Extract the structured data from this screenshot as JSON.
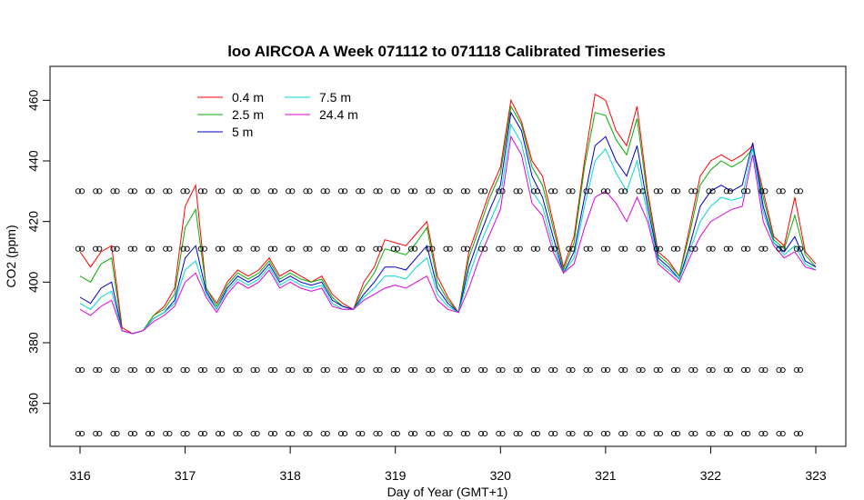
{
  "chart_data": {
    "type": "line",
    "title": "loo AIRCOA A  Week 071112 to 071118  Calibrated Timeseries",
    "xlabel": "Day of Year (GMT+1)",
    "ylabel": "CO2 (ppm)",
    "xlim": [
      316,
      323
    ],
    "ylim": [
      350,
      470
    ],
    "x_ticks": [
      316,
      317,
      318,
      319,
      320,
      321,
      322,
      323
    ],
    "y_ticks": [
      360,
      380,
      400,
      420,
      440,
      460
    ],
    "grid": false,
    "legend_position": "top-left",
    "series": [
      {
        "name": "0.4 m",
        "color": "#ff0000",
        "x": [
          316.0,
          316.1,
          316.2,
          316.3,
          316.4,
          316.5,
          316.6,
          316.7,
          316.8,
          316.9,
          317.0,
          317.1,
          317.2,
          317.3,
          317.4,
          317.5,
          317.6,
          317.7,
          317.8,
          317.9,
          318.0,
          318.1,
          318.2,
          318.3,
          318.4,
          318.5,
          318.6,
          318.7,
          318.8,
          318.9,
          319.0,
          319.1,
          319.2,
          319.3,
          319.4,
          319.5,
          319.6,
          319.7,
          319.8,
          319.9,
          320.0,
          320.1,
          320.2,
          320.3,
          320.4,
          320.5,
          320.6,
          320.7,
          320.8,
          320.9,
          321.0,
          321.1,
          321.2,
          321.3,
          321.4,
          321.5,
          321.6,
          321.7,
          321.8,
          321.9,
          322.0,
          322.1,
          322.2,
          322.3,
          322.4,
          322.5,
          322.6,
          322.7,
          322.8,
          322.9,
          323.0
        ],
        "y": [
          410,
          405,
          410,
          412,
          385,
          383,
          384,
          389,
          392,
          398,
          425,
          432,
          398,
          393,
          400,
          404,
          402,
          404,
          408,
          402,
          404,
          402,
          400,
          402,
          396,
          393,
          391,
          400,
          405,
          414,
          413,
          412,
          416,
          420,
          402,
          395,
          390,
          410,
          420,
          430,
          438,
          460,
          453,
          440,
          435,
          420,
          405,
          415,
          440,
          462,
          460,
          450,
          445,
          458,
          430,
          410,
          407,
          402,
          418,
          435,
          440,
          442,
          440,
          442,
          445,
          430,
          415,
          412,
          428,
          410,
          406
        ]
      },
      {
        "name": "2.5 m",
        "color": "#00b000",
        "x": [
          316.0,
          316.1,
          316.2,
          316.3,
          316.4,
          316.5,
          316.6,
          316.7,
          316.8,
          316.9,
          317.0,
          317.1,
          317.2,
          317.3,
          317.4,
          317.5,
          317.6,
          317.7,
          317.8,
          317.9,
          318.0,
          318.1,
          318.2,
          318.3,
          318.4,
          318.5,
          318.6,
          318.7,
          318.8,
          318.9,
          319.0,
          319.1,
          319.2,
          319.3,
          319.4,
          319.5,
          319.6,
          319.7,
          319.8,
          319.9,
          320.0,
          320.1,
          320.2,
          320.3,
          320.4,
          320.5,
          320.6,
          320.7,
          320.8,
          320.9,
          321.0,
          321.1,
          321.2,
          321.3,
          321.4,
          321.5,
          321.6,
          321.7,
          321.8,
          321.9,
          322.0,
          322.1,
          322.2,
          322.3,
          322.4,
          322.5,
          322.6,
          322.7,
          322.8,
          322.9,
          323.0
        ],
        "y": [
          402,
          400,
          406,
          408,
          384,
          383,
          384,
          389,
          391,
          396,
          418,
          424,
          398,
          392,
          399,
          403,
          401,
          403,
          407,
          401,
          403,
          401,
          400,
          401,
          395,
          392,
          391,
          398,
          403,
          411,
          410,
          409,
          413,
          418,
          400,
          394,
          390,
          408,
          418,
          428,
          436,
          458,
          452,
          438,
          432,
          418,
          404,
          413,
          438,
          456,
          455,
          447,
          442,
          454,
          428,
          409,
          406,
          402,
          416,
          432,
          437,
          440,
          438,
          440,
          444,
          428,
          414,
          411,
          422,
          409,
          405
        ]
      },
      {
        "name": "5 m",
        "color": "#0000c8",
        "x": [
          316.0,
          316.1,
          316.2,
          316.3,
          316.4,
          316.5,
          316.6,
          316.7,
          316.8,
          316.9,
          317.0,
          317.1,
          317.2,
          317.3,
          317.4,
          317.5,
          317.6,
          317.7,
          317.8,
          317.9,
          318.0,
          318.1,
          318.2,
          318.3,
          318.4,
          318.5,
          318.6,
          318.7,
          318.8,
          318.9,
          319.0,
          319.1,
          319.2,
          319.3,
          319.4,
          319.5,
          319.6,
          319.7,
          319.8,
          319.9,
          320.0,
          320.1,
          320.2,
          320.3,
          320.4,
          320.5,
          320.6,
          320.7,
          320.8,
          320.9,
          321.0,
          321.1,
          321.2,
          321.3,
          321.4,
          321.5,
          321.6,
          321.7,
          321.8,
          321.9,
          322.0,
          322.1,
          322.2,
          322.3,
          322.4,
          322.5,
          322.6,
          322.7,
          322.8,
          322.9,
          323.0
        ],
        "y": [
          395,
          393,
          398,
          400,
          384,
          383,
          384,
          388,
          390,
          394,
          408,
          412,
          397,
          391,
          398,
          402,
          400,
          402,
          406,
          400,
          402,
          400,
          399,
          400,
          394,
          392,
          391,
          396,
          400,
          405,
          405,
          404,
          408,
          412,
          398,
          393,
          390,
          405,
          415,
          424,
          432,
          456,
          450,
          435,
          428,
          415,
          403,
          410,
          428,
          445,
          448,
          440,
          435,
          445,
          425,
          408,
          405,
          401,
          412,
          425,
          430,
          432,
          430,
          432,
          446,
          425,
          413,
          410,
          415,
          407,
          405
        ]
      },
      {
        "name": "7.5 m",
        "color": "#00d8d8",
        "x": [
          316.0,
          316.1,
          316.2,
          316.3,
          316.4,
          316.5,
          316.6,
          316.7,
          316.8,
          316.9,
          317.0,
          317.1,
          317.2,
          317.3,
          317.4,
          317.5,
          317.6,
          317.7,
          317.8,
          317.9,
          318.0,
          318.1,
          318.2,
          318.3,
          318.4,
          318.5,
          318.6,
          318.7,
          318.8,
          318.9,
          319.0,
          319.1,
          319.2,
          319.3,
          319.4,
          319.5,
          319.6,
          319.7,
          319.8,
          319.9,
          320.0,
          320.1,
          320.2,
          320.3,
          320.4,
          320.5,
          320.6,
          320.7,
          320.8,
          320.9,
          321.0,
          321.1,
          321.2,
          321.3,
          321.4,
          321.5,
          321.6,
          321.7,
          321.8,
          321.9,
          322.0,
          322.1,
          322.2,
          322.3,
          322.4,
          322.5,
          322.6,
          322.7,
          322.8,
          322.9,
          323.0
        ],
        "y": [
          393,
          391,
          395,
          397,
          384,
          383,
          384,
          388,
          390,
          393,
          404,
          407,
          396,
          391,
          397,
          401,
          399,
          401,
          405,
          399,
          401,
          399,
          398,
          399,
          393,
          391,
          391,
          395,
          398,
          402,
          402,
          401,
          405,
          408,
          396,
          392,
          390,
          402,
          412,
          420,
          428,
          452,
          446,
          430,
          425,
          412,
          403,
          408,
          425,
          440,
          444,
          436,
          430,
          440,
          422,
          407,
          404,
          401,
          410,
          420,
          425,
          428,
          427,
          428,
          444,
          423,
          413,
          409,
          412,
          406,
          404
        ]
      },
      {
        "name": "24.4 m",
        "color": "#e000e0",
        "x": [
          316.0,
          316.1,
          316.2,
          316.3,
          316.4,
          316.5,
          316.6,
          316.7,
          316.8,
          316.9,
          317.0,
          317.1,
          317.2,
          317.3,
          317.4,
          317.5,
          317.6,
          317.7,
          317.8,
          317.9,
          318.0,
          318.1,
          318.2,
          318.3,
          318.4,
          318.5,
          318.6,
          318.7,
          318.8,
          318.9,
          319.0,
          319.1,
          319.2,
          319.3,
          319.4,
          319.5,
          319.6,
          319.7,
          319.8,
          319.9,
          320.0,
          320.1,
          320.2,
          320.3,
          320.4,
          320.5,
          320.6,
          320.7,
          320.8,
          320.9,
          321.0,
          321.1,
          321.2,
          321.3,
          321.4,
          321.5,
          321.6,
          321.7,
          321.8,
          321.9,
          322.0,
          322.1,
          322.2,
          322.3,
          322.4,
          322.5,
          322.6,
          322.7,
          322.8,
          322.9,
          323.0
        ],
        "y": [
          391,
          389,
          392,
          394,
          384,
          383,
          384,
          387,
          389,
          392,
          400,
          403,
          395,
          390,
          396,
          400,
          398,
          400,
          404,
          398,
          400,
          398,
          397,
          398,
          392,
          391,
          391,
          394,
          396,
          398,
          399,
          398,
          400,
          402,
          394,
          391,
          390,
          398,
          408,
          416,
          424,
          448,
          442,
          426,
          422,
          410,
          403,
          406,
          418,
          428,
          430,
          426,
          420,
          428,
          420,
          406,
          403,
          400,
          408,
          415,
          420,
          422,
          424,
          425,
          442,
          420,
          412,
          408,
          410,
          405,
          404
        ]
      }
    ],
    "markers": {
      "symbol": "open-circle",
      "levels": [
        350,
        371,
        411,
        430
      ],
      "x_start": 316.0,
      "x_end": 323.0,
      "x_step": 0.1667
    }
  }
}
